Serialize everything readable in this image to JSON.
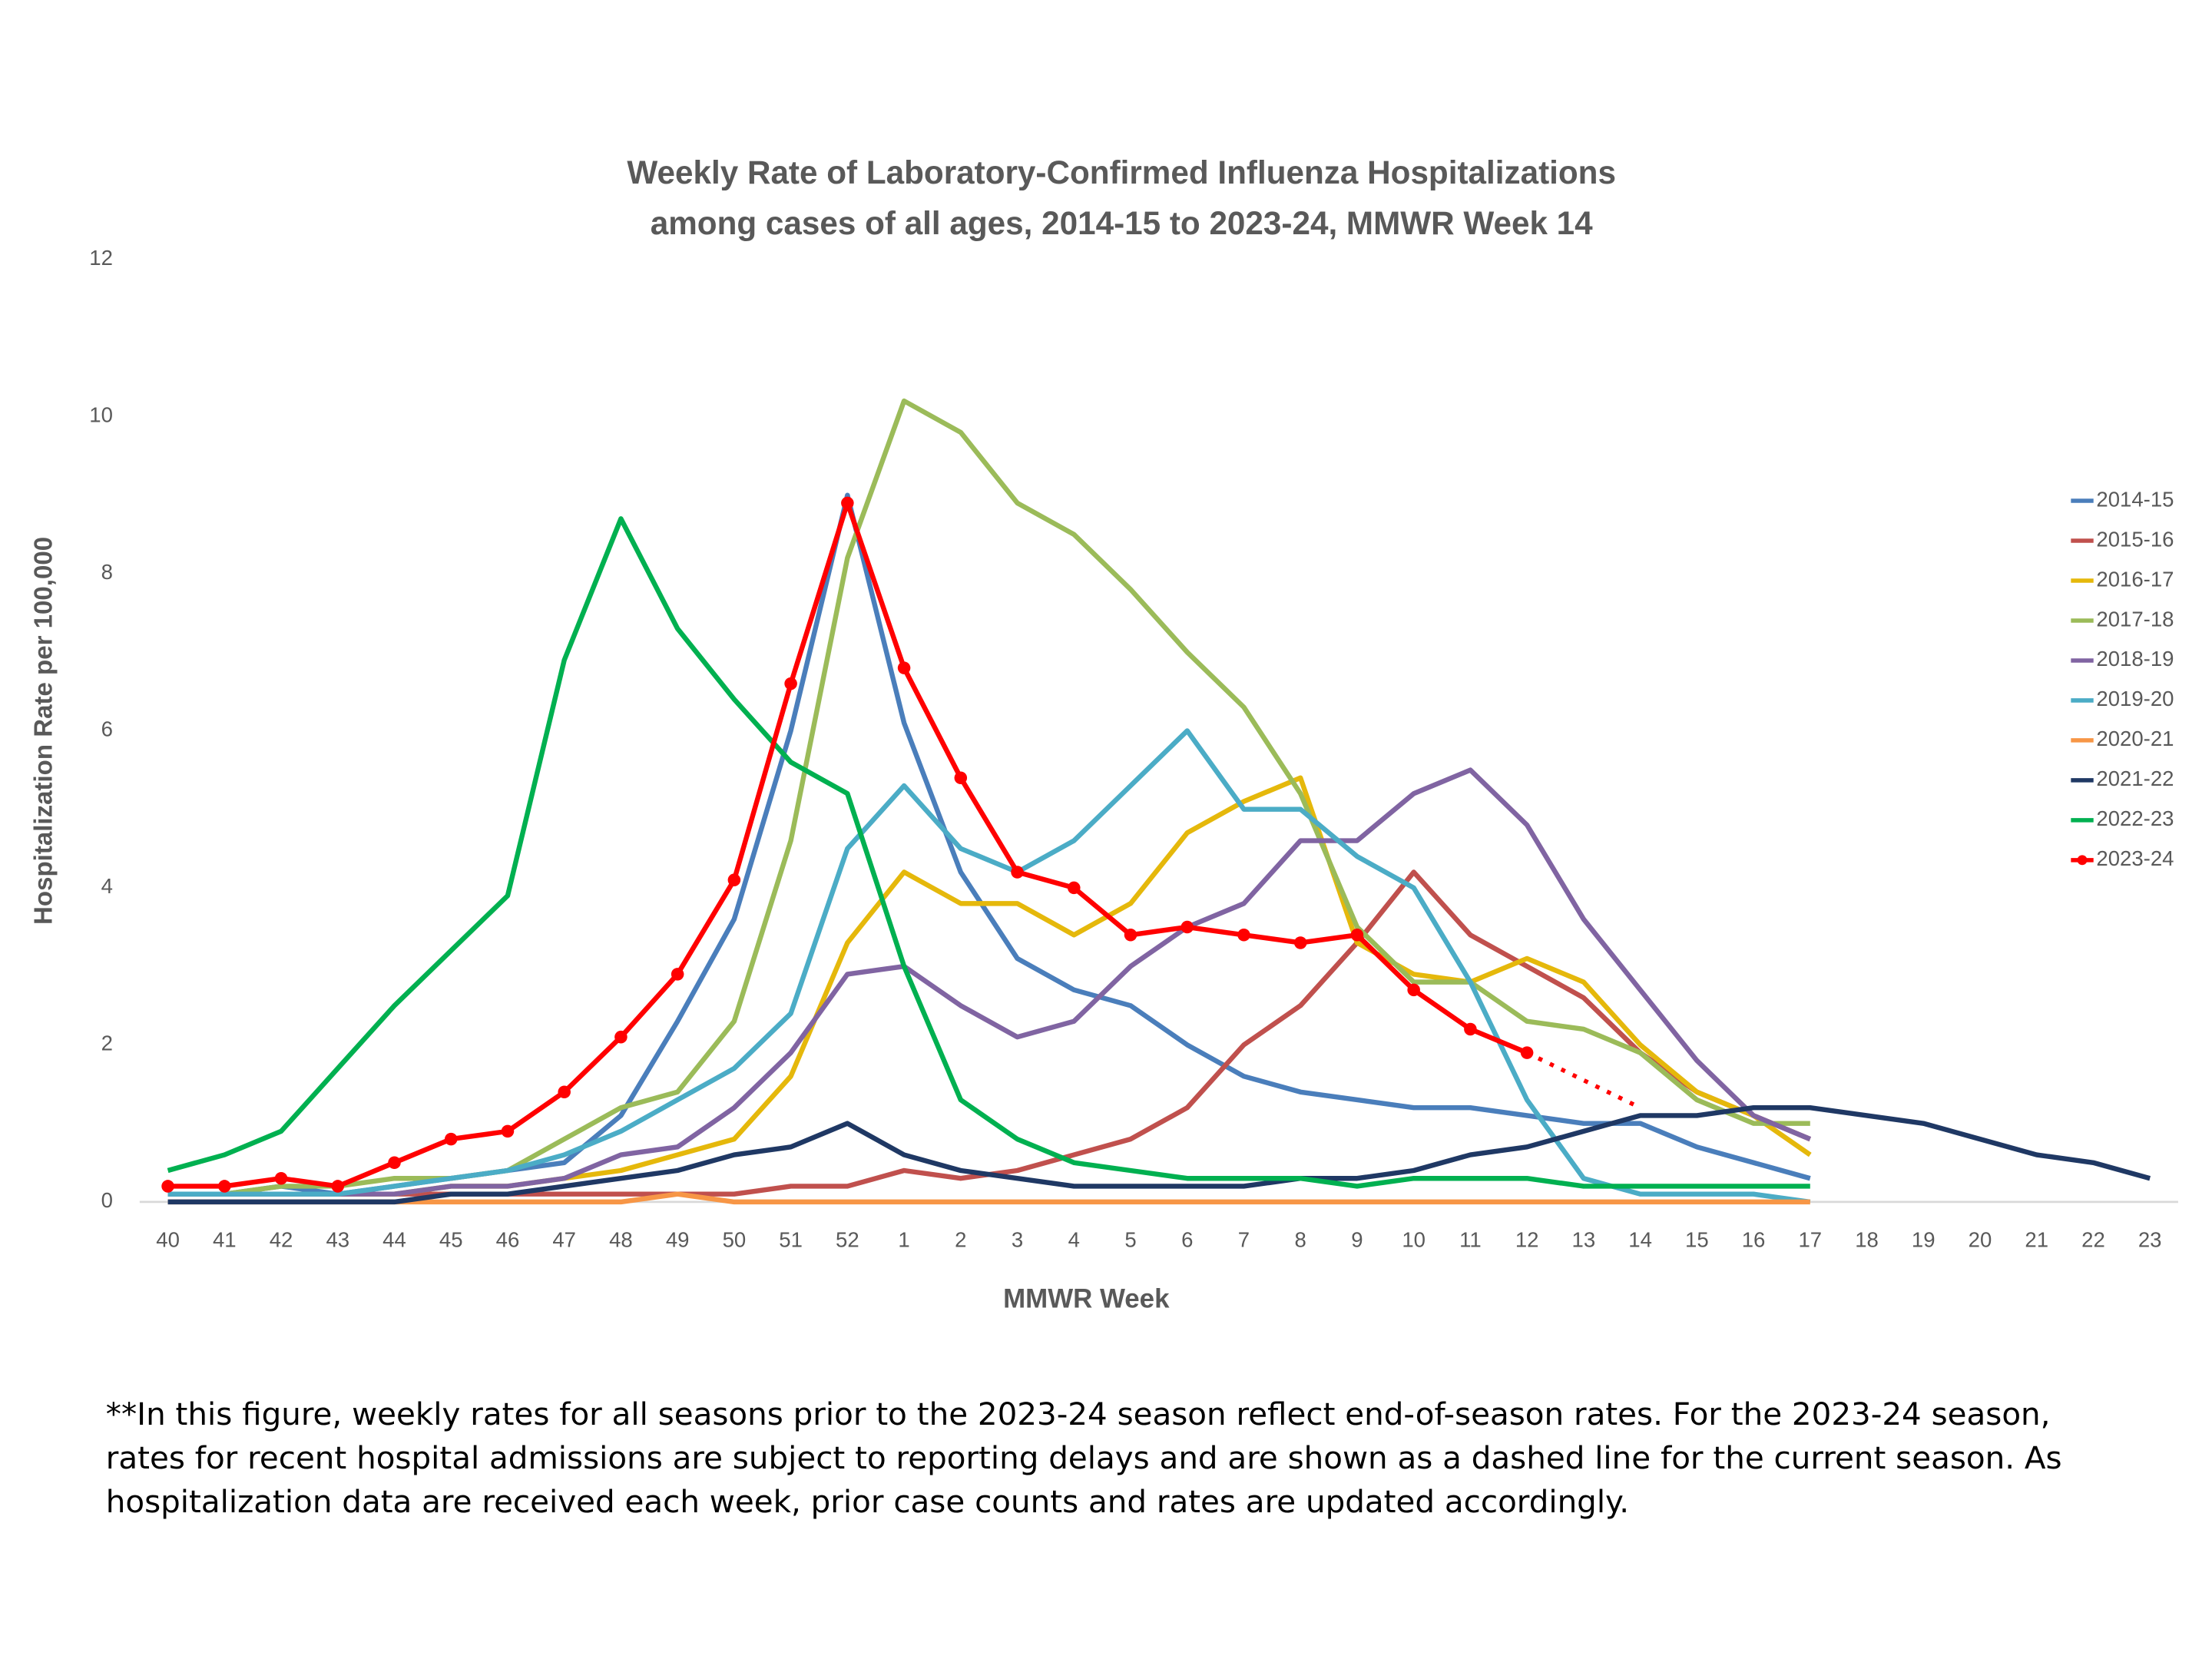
{
  "chart_data": {
    "type": "line",
    "title": [
      "Weekly Rate of Laboratory-Confirmed Influenza Hospitalizations",
      "among cases of all ages, 2014-15 to 2023-24, MMWR Week 14"
    ],
    "x_label": "MMWR Week",
    "y_label": "Hospitalization Rate per 100,000",
    "categories": [
      "40",
      "41",
      "42",
      "43",
      "44",
      "45",
      "46",
      "47",
      "48",
      "49",
      "50",
      "51",
      "52",
      "1",
      "2",
      "3",
      "4",
      "5",
      "6",
      "7",
      "8",
      "9",
      "10",
      "11",
      "12",
      "13",
      "14",
      "15",
      "16",
      "17",
      "18",
      "19",
      "20",
      "21",
      "22",
      "23"
    ],
    "ylim": [
      0,
      12
    ],
    "yticks": [
      0,
      2,
      4,
      6,
      8,
      10,
      12
    ],
    "grid": false,
    "legend": "right",
    "series": [
      {
        "name": "2014-15",
        "color": "#4a7ebb",
        "values": [
          0.1,
          0.1,
          0.2,
          0.1,
          0.2,
          0.3,
          0.4,
          0.5,
          1.1,
          2.3,
          3.6,
          6.0,
          9.0,
          6.1,
          4.2,
          3.1,
          2.7,
          2.5,
          2.0,
          1.6,
          1.4,
          1.3,
          1.2,
          1.2,
          1.1,
          1.0,
          1.0,
          0.7,
          0.5,
          0.3,
          null,
          null,
          null,
          null,
          null,
          null
        ]
      },
      {
        "name": "2015-16",
        "color": "#c0504d",
        "values": [
          0.1,
          0.1,
          0.1,
          0.1,
          0.1,
          0.1,
          0.1,
          0.1,
          0.1,
          0.1,
          0.1,
          0.2,
          0.2,
          0.4,
          0.3,
          0.4,
          0.6,
          0.8,
          1.2,
          2.0,
          2.5,
          3.3,
          4.2,
          3.4,
          3.0,
          2.6,
          1.9,
          1.4,
          1.1,
          0.8,
          null,
          null,
          null,
          null,
          null,
          null
        ]
      },
      {
        "name": "2016-17",
        "color": "#e5b80b",
        "values": [
          0.1,
          0.1,
          0.1,
          0.1,
          0.1,
          0.2,
          0.2,
          0.3,
          0.4,
          0.6,
          0.8,
          1.6,
          3.3,
          4.2,
          3.8,
          3.8,
          3.4,
          3.8,
          4.7,
          5.1,
          5.4,
          3.3,
          2.9,
          2.8,
          3.1,
          2.8,
          2.0,
          1.4,
          1.1,
          0.6,
          null,
          null,
          null,
          null,
          null,
          null
        ]
      },
      {
        "name": "2017-18",
        "color": "#9bbb59",
        "values": [
          0.1,
          0.1,
          0.2,
          0.2,
          0.3,
          0.3,
          0.4,
          0.8,
          1.2,
          1.4,
          2.3,
          4.6,
          8.2,
          10.2,
          9.8,
          8.9,
          8.5,
          7.8,
          7.0,
          6.3,
          5.2,
          3.5,
          2.8,
          2.8,
          2.3,
          2.2,
          1.9,
          1.3,
          1.0,
          1.0,
          null,
          null,
          null,
          null,
          null,
          null
        ]
      },
      {
        "name": "2018-19",
        "color": "#8064a2",
        "values": [
          0.1,
          0.1,
          0.1,
          0.1,
          0.1,
          0.2,
          0.2,
          0.3,
          0.6,
          0.7,
          1.2,
          1.9,
          2.9,
          3.0,
          2.5,
          2.1,
          2.3,
          3.0,
          3.5,
          3.8,
          4.6,
          4.6,
          5.2,
          5.5,
          4.8,
          3.6,
          2.7,
          1.8,
          1.1,
          0.8,
          null,
          null,
          null,
          null,
          null,
          null
        ]
      },
      {
        "name": "2019-20",
        "color": "#4bacc6",
        "values": [
          0.1,
          0.1,
          0.1,
          0.1,
          0.2,
          0.3,
          0.4,
          0.6,
          0.9,
          1.3,
          1.7,
          2.4,
          4.5,
          5.3,
          4.5,
          4.2,
          4.6,
          5.3,
          6.0,
          5.0,
          5.0,
          4.4,
          4.0,
          2.8,
          1.3,
          0.3,
          0.1,
          0.1,
          0.1,
          0,
          null,
          null,
          null,
          null,
          null,
          null
        ]
      },
      {
        "name": "2020-21",
        "color": "#f79646",
        "values": [
          0,
          0,
          0,
          0,
          0,
          0,
          0,
          0,
          0,
          0.1,
          0,
          0,
          0,
          0,
          0,
          0,
          0,
          0,
          0,
          0,
          0,
          0,
          0,
          0,
          0,
          0,
          0,
          0,
          0,
          0,
          null,
          null,
          null,
          null,
          null,
          null
        ]
      },
      {
        "name": "2021-22",
        "color": "#1f3864",
        "values": [
          0,
          0,
          0,
          0,
          0,
          0.1,
          0.1,
          0.2,
          0.3,
          0.4,
          0.6,
          0.7,
          1.0,
          0.6,
          0.4,
          0.3,
          0.2,
          0.2,
          0.2,
          0.2,
          0.3,
          0.3,
          0.4,
          0.6,
          0.7,
          0.9,
          1.1,
          1.1,
          1.2,
          1.2,
          1.1,
          1.0,
          0.8,
          0.6,
          0.5,
          0.3
        ]
      },
      {
        "name": "2022-23",
        "color": "#00b050",
        "values": [
          0.4,
          0.6,
          0.9,
          1.7,
          2.5,
          3.2,
          3.9,
          6.9,
          8.7,
          7.3,
          6.4,
          5.6,
          5.2,
          3.0,
          1.3,
          0.8,
          0.5,
          0.4,
          0.3,
          0.3,
          0.3,
          0.2,
          0.3,
          0.3,
          0.3,
          0.2,
          0.2,
          0.2,
          0.2,
          0.2,
          null,
          null,
          null,
          null,
          null,
          null
        ]
      },
      {
        "name": "2023-24",
        "color": "#ff0000",
        "markers": true,
        "dashed_from": "12",
        "values": [
          0.2,
          0.2,
          0.3,
          0.2,
          0.5,
          0.8,
          0.9,
          1.4,
          2.1,
          2.9,
          4.1,
          6.6,
          8.9,
          6.8,
          5.4,
          4.2,
          4.0,
          3.4,
          3.5,
          3.4,
          3.3,
          3.4,
          2.7,
          2.2,
          1.9,
          1.55,
          1.2,
          null,
          null,
          null,
          null,
          null,
          null,
          null,
          null,
          null
        ]
      }
    ],
    "note": "**In this figure, weekly rates for all seasons prior to the 2023-24 season reflect end-of-season rates. For the 2023-24 season, rates for recent hospital admissions are subject to reporting delays and are shown as a dashed line for the current season. As hospitalization data are received each week, prior case counts and rates are updated accordingly."
  }
}
